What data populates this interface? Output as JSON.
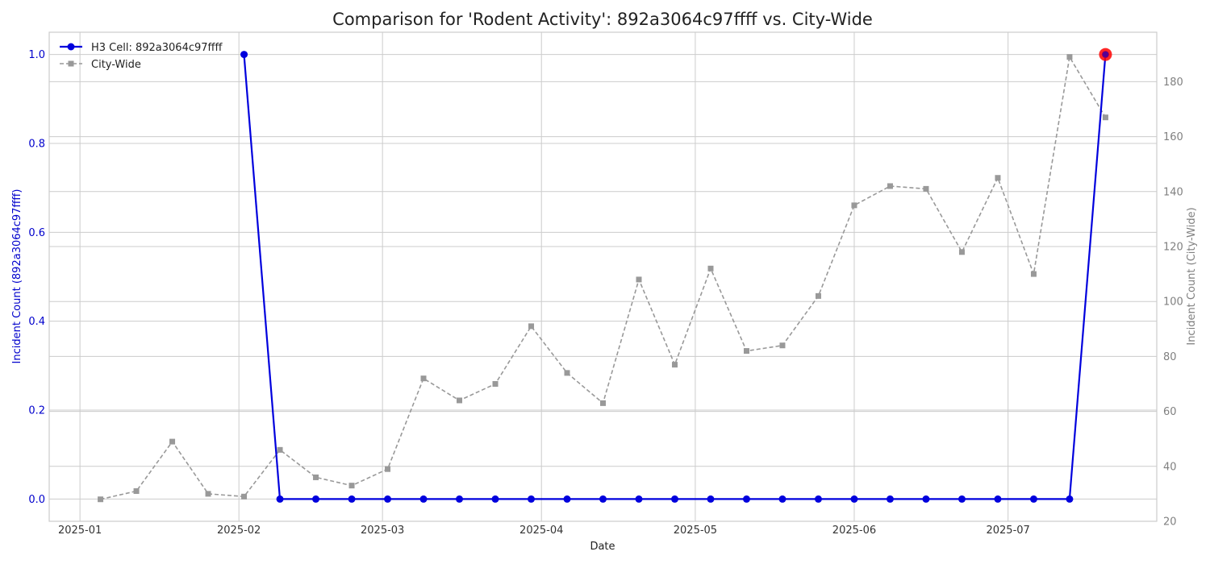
{
  "chart_data": {
    "type": "line",
    "title": "Comparison for 'Rodent Activity': 892a3064c97ffff vs. City-Wide",
    "xlabel": "Date",
    "ylabel_left": "Incident Count (892a3064c97ffff)",
    "ylabel_right": "Incident Count (City-Wide)",
    "xlim": [
      "2024-12-26",
      "2025-07-30"
    ],
    "ylim_left": [
      -0.05,
      1.05
    ],
    "ylim_right": [
      20,
      198
    ],
    "x_ticks": [
      "2025-01-01",
      "2025-02-01",
      "2025-03-01",
      "2025-04-01",
      "2025-05-01",
      "2025-06-01",
      "2025-07-01"
    ],
    "x_tick_labels": [
      "2025-01",
      "2025-02",
      "2025-03",
      "2025-04",
      "2025-05",
      "2025-06",
      "2025-07"
    ],
    "y_ticks_left": [
      "0.0",
      "0.2",
      "0.4",
      "0.6",
      "0.8",
      "1.0"
    ],
    "y_ticks_right": [
      "20",
      "40",
      "60",
      "80",
      "100",
      "120",
      "140",
      "160",
      "180"
    ],
    "grid": true,
    "legend_position": "top-left",
    "colors": {
      "cell": "#0000dd",
      "city": "#999999",
      "highlight": "#ff0000"
    },
    "series": [
      {
        "name": "H3 Cell: 892a3064c97ffff",
        "axis": "left",
        "x": [
          "2025-02-02",
          "2025-02-09",
          "2025-02-16",
          "2025-02-23",
          "2025-03-02",
          "2025-03-09",
          "2025-03-16",
          "2025-03-23",
          "2025-03-30",
          "2025-04-06",
          "2025-04-13",
          "2025-04-20",
          "2025-04-27",
          "2025-05-04",
          "2025-05-11",
          "2025-05-18",
          "2025-05-25",
          "2025-06-01",
          "2025-06-08",
          "2025-06-15",
          "2025-06-22",
          "2025-06-29",
          "2025-07-06",
          "2025-07-13",
          "2025-07-20"
        ],
        "values": [
          1,
          0,
          0,
          0,
          0,
          0,
          0,
          0,
          0,
          0,
          0,
          0,
          0,
          0,
          0,
          0,
          0,
          0,
          0,
          0,
          0,
          0,
          0,
          0,
          1
        ]
      },
      {
        "name": "City-Wide",
        "axis": "right",
        "x": [
          "2025-01-05",
          "2025-01-12",
          "2025-01-19",
          "2025-01-26",
          "2025-02-02",
          "2025-02-09",
          "2025-02-16",
          "2025-02-23",
          "2025-03-02",
          "2025-03-09",
          "2025-03-16",
          "2025-03-23",
          "2025-03-30",
          "2025-04-06",
          "2025-04-13",
          "2025-04-20",
          "2025-04-27",
          "2025-05-04",
          "2025-05-11",
          "2025-05-18",
          "2025-05-25",
          "2025-06-01",
          "2025-06-08",
          "2025-06-15",
          "2025-06-22",
          "2025-06-29",
          "2025-07-06",
          "2025-07-13",
          "2025-07-20"
        ],
        "values": [
          28,
          31,
          49,
          30,
          29,
          46,
          36,
          33,
          39,
          72,
          64,
          70,
          91,
          74,
          63,
          108,
          77,
          112,
          82,
          84,
          102,
          135,
          142,
          141,
          118,
          145,
          110,
          189,
          167
        ]
      }
    ],
    "highlight_point": {
      "x": "2025-07-20",
      "value": 1
    }
  }
}
